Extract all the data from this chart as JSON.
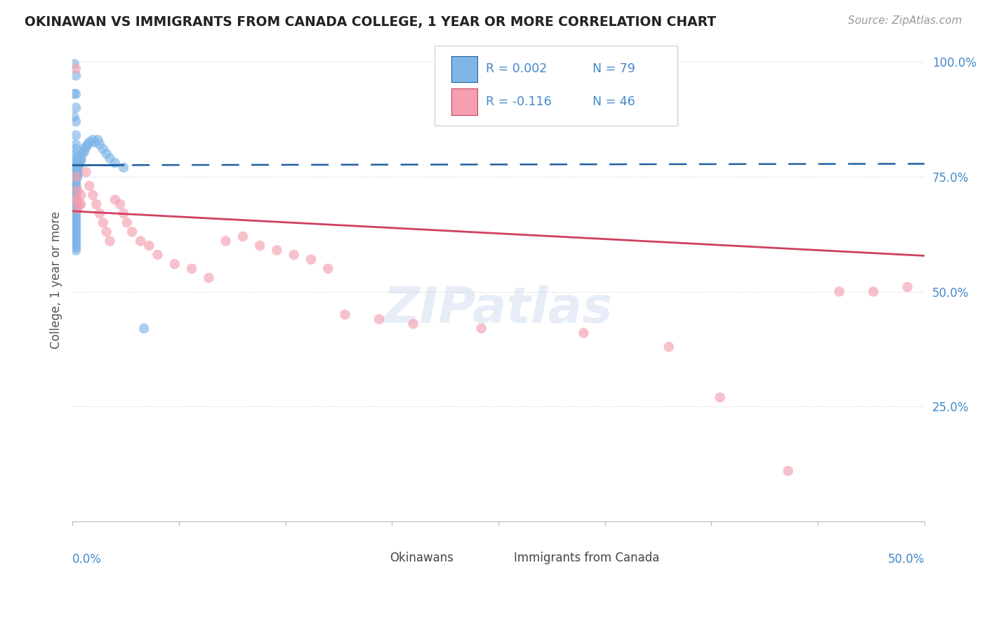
{
  "title": "OKINAWAN VS IMMIGRANTS FROM CANADA COLLEGE, 1 YEAR OR MORE CORRELATION CHART",
  "source": "Source: ZipAtlas.com",
  "ylabel": "College, 1 year or more",
  "xlim": [
    0.0,
    0.5
  ],
  "ylim": [
    0.0,
    1.05
  ],
  "legend_r1": "R = 0.002",
  "legend_n1": "N = 79",
  "legend_r2": "R = -0.116",
  "legend_n2": "N = 46",
  "blue_color": "#7EB6E8",
  "pink_color": "#F4A0B0",
  "blue_line_color": "#2060A0",
  "pink_line_color": "#D04060",
  "background_color": "#ffffff",
  "grid_color": "#cccccc",
  "okinawan_x": [
    0.001,
    0.001,
    0.001,
    0.002,
    0.002,
    0.002,
    0.002,
    0.002,
    0.002,
    0.002,
    0.002,
    0.002,
    0.002,
    0.002,
    0.002,
    0.002,
    0.002,
    0.002,
    0.002,
    0.002,
    0.002,
    0.002,
    0.002,
    0.002,
    0.002,
    0.002,
    0.002,
    0.002,
    0.002,
    0.002,
    0.002,
    0.002,
    0.002,
    0.002,
    0.002,
    0.002,
    0.002,
    0.002,
    0.002,
    0.002,
    0.002,
    0.002,
    0.002,
    0.002,
    0.002,
    0.002,
    0.002,
    0.002,
    0.002,
    0.002,
    0.002,
    0.002,
    0.003,
    0.003,
    0.003,
    0.003,
    0.003,
    0.004,
    0.004,
    0.004,
    0.004,
    0.005,
    0.005,
    0.006,
    0.007,
    0.007,
    0.008,
    0.009,
    0.01,
    0.012,
    0.013,
    0.015,
    0.016,
    0.018,
    0.02,
    0.022,
    0.025,
    0.03,
    0.042
  ],
  "okinawan_y": [
    0.995,
    0.93,
    0.88,
    0.97,
    0.93,
    0.9,
    0.87,
    0.84,
    0.82,
    0.81,
    0.8,
    0.79,
    0.785,
    0.78,
    0.775,
    0.77,
    0.765,
    0.76,
    0.755,
    0.75,
    0.745,
    0.74,
    0.735,
    0.73,
    0.725,
    0.72,
    0.715,
    0.71,
    0.705,
    0.7,
    0.695,
    0.69,
    0.685,
    0.68,
    0.675,
    0.67,
    0.665,
    0.66,
    0.655,
    0.65,
    0.645,
    0.64,
    0.635,
    0.63,
    0.625,
    0.62,
    0.615,
    0.61,
    0.605,
    0.6,
    0.595,
    0.59,
    0.77,
    0.765,
    0.76,
    0.755,
    0.75,
    0.79,
    0.785,
    0.78,
    0.775,
    0.79,
    0.785,
    0.8,
    0.81,
    0.805,
    0.815,
    0.82,
    0.825,
    0.83,
    0.825,
    0.83,
    0.82,
    0.81,
    0.8,
    0.79,
    0.78,
    0.77,
    0.42
  ],
  "canada_x": [
    0.002,
    0.002,
    0.002,
    0.003,
    0.003,
    0.003,
    0.004,
    0.005,
    0.005,
    0.008,
    0.01,
    0.012,
    0.014,
    0.016,
    0.018,
    0.02,
    0.022,
    0.025,
    0.028,
    0.03,
    0.032,
    0.035,
    0.04,
    0.045,
    0.05,
    0.06,
    0.07,
    0.08,
    0.09,
    0.1,
    0.11,
    0.12,
    0.13,
    0.14,
    0.15,
    0.16,
    0.18,
    0.2,
    0.24,
    0.3,
    0.35,
    0.38,
    0.42,
    0.45,
    0.47,
    0.49
  ],
  "canada_y": [
    0.985,
    0.75,
    0.7,
    0.72,
    0.7,
    0.68,
    0.69,
    0.71,
    0.69,
    0.76,
    0.73,
    0.71,
    0.69,
    0.67,
    0.65,
    0.63,
    0.61,
    0.7,
    0.69,
    0.67,
    0.65,
    0.63,
    0.61,
    0.6,
    0.58,
    0.56,
    0.55,
    0.53,
    0.61,
    0.62,
    0.6,
    0.59,
    0.58,
    0.57,
    0.55,
    0.45,
    0.44,
    0.43,
    0.42,
    0.41,
    0.38,
    0.27,
    0.11,
    0.5,
    0.5,
    0.51
  ]
}
